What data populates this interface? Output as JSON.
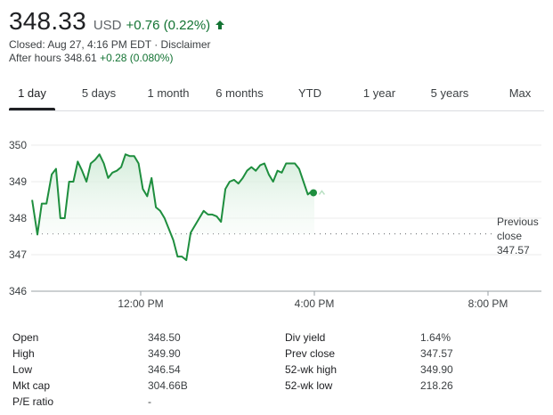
{
  "quote": {
    "price": "348.33",
    "currency": "USD",
    "change": "+0.76 (0.22%)",
    "closed_text": "Closed: Aug 27, 4:16 PM EDT · Disclaimer",
    "after_hours_label": "After hours 348.61",
    "after_hours_change": "+0.28 (0.080%)",
    "colors": {
      "positive": "#137333",
      "line": "#1e8e3e",
      "fill": "#e6f4ea"
    }
  },
  "tabs": [
    "1 day",
    "5 days",
    "1 month",
    "6 months",
    "YTD",
    "1 year",
    "5 years",
    "Max"
  ],
  "active_tab": "1 day",
  "chart_data": {
    "type": "line",
    "title": "",
    "xlabel": "",
    "ylabel": "",
    "ylim": [
      346,
      350
    ],
    "y_ticks": [
      "346",
      "347",
      "348",
      "349",
      "350"
    ],
    "x_ticks": [
      "12:00 PM",
      "4:00 PM",
      "8:00 PM"
    ],
    "grid": true,
    "reference_line": {
      "label_line1": "Previous",
      "label_line2": "close",
      "value_label": "347.57",
      "value": 347.57
    },
    "series": [
      {
        "x_hours": [
          9.5,
          9.62,
          9.72,
          9.83,
          9.95,
          10.05,
          10.15,
          10.25,
          10.35,
          10.45,
          10.55,
          10.65,
          10.75,
          10.85,
          10.95,
          11.05,
          11.15,
          11.25,
          11.35,
          11.45,
          11.55,
          11.65,
          11.75,
          11.85,
          11.95,
          12.05,
          12.15,
          12.25,
          12.35,
          12.45,
          12.55,
          12.65,
          12.75,
          12.85,
          12.95,
          13.05,
          13.15,
          13.25,
          13.35,
          13.45,
          13.55,
          13.65,
          13.75,
          13.85,
          13.95,
          14.05,
          14.15,
          14.25,
          14.35,
          14.45,
          14.55,
          14.65,
          14.75,
          14.85,
          14.95,
          15.05,
          15.15,
          15.25,
          15.35,
          15.45,
          15.55,
          15.65,
          15.75,
          15.85,
          15.95,
          16.0
        ],
        "values": [
          348.5,
          347.55,
          348.4,
          348.4,
          349.2,
          349.35,
          348.0,
          348.0,
          349.0,
          349.0,
          349.55,
          349.3,
          349.0,
          349.5,
          349.6,
          349.75,
          349.5,
          349.1,
          349.25,
          349.3,
          349.4,
          349.75,
          349.7,
          349.7,
          349.5,
          348.8,
          348.6,
          349.1,
          348.3,
          348.2,
          348.0,
          347.7,
          347.4,
          346.95,
          346.95,
          346.85,
          347.6,
          347.8,
          348.0,
          348.2,
          348.1,
          348.1,
          348.05,
          347.9,
          348.8,
          349.0,
          349.05,
          348.95,
          349.1,
          349.3,
          349.4,
          349.3,
          349.45,
          349.5,
          349.2,
          349.0,
          349.3,
          349.25,
          349.5,
          349.5,
          349.5,
          349.35,
          349.0,
          348.65,
          348.75,
          348.72
        ],
        "after_hours_marker": {
          "x_hours": 16.05,
          "value": 348.72
        }
      }
    ]
  },
  "stats": {
    "left": [
      {
        "label": "Open",
        "value": "348.50"
      },
      {
        "label": "High",
        "value": "349.90"
      },
      {
        "label": "Low",
        "value": "346.54"
      },
      {
        "label": "Mkt cap",
        "value": "304.66B"
      },
      {
        "label": "P/E ratio",
        "value": "-"
      }
    ],
    "right": [
      {
        "label": "Div yield",
        "value": "1.64%"
      },
      {
        "label": "Prev close",
        "value": "347.57"
      },
      {
        "label": "52-wk high",
        "value": "349.90"
      },
      {
        "label": "52-wk low",
        "value": "218.26"
      }
    ]
  }
}
